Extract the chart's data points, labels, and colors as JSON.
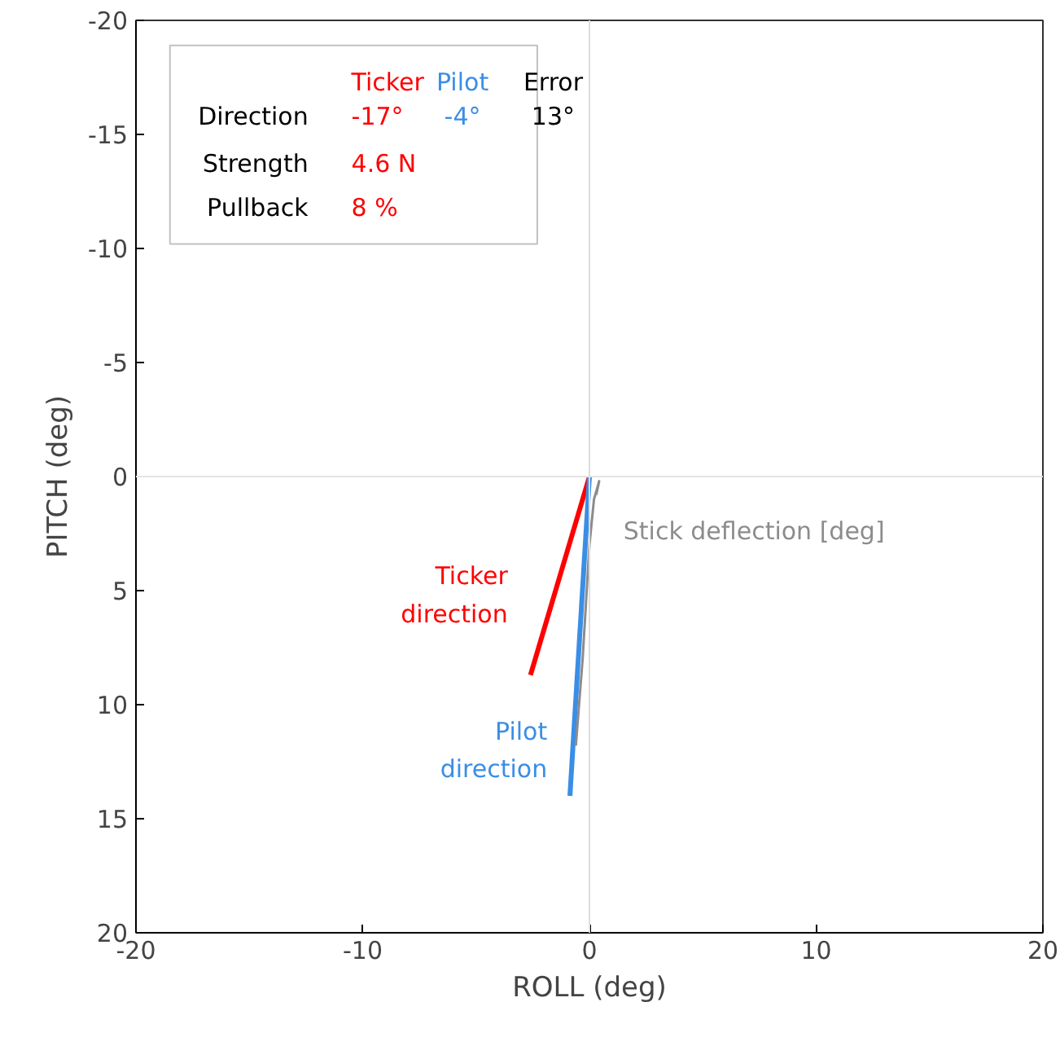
{
  "chart_data": {
    "type": "line",
    "xlabel": "ROLL (deg)",
    "ylabel": "PITCH (deg)",
    "xlim": [
      -20,
      20
    ],
    "ylim": [
      20,
      -20
    ],
    "xticks": [
      -20,
      -10,
      0,
      10,
      20
    ],
    "yticks": [
      -20,
      -15,
      -10,
      -5,
      0,
      5,
      10,
      15,
      20
    ],
    "grid": false,
    "marker": "none",
    "line_style": "solid",
    "series": [
      {
        "name": "Ticker direction",
        "color": "#ff0000",
        "x": [
          0,
          -2.6
        ],
        "values": [
          0,
          8.7
        ]
      },
      {
        "name": "Pilot direction",
        "color": "#3a8ee6",
        "x": [
          0,
          -0.86
        ],
        "values": [
          0,
          14.0
        ]
      },
      {
        "name": "Stick deflection [deg]",
        "color": "#8c8c8c",
        "x": [
          -0.6,
          -0.3,
          0,
          0.2,
          0.43,
          0.3
        ],
        "values": [
          11.8,
          8,
          3,
          1,
          0.2,
          0.8
        ]
      }
    ],
    "ref_lines": [
      {
        "axis": "x",
        "value": 0,
        "color": "#dddddd"
      },
      {
        "axis": "y",
        "value": 0,
        "color": "#e4e4e4"
      }
    ],
    "annotations": [
      "Ticker",
      "Pilot",
      "Error",
      "Direction",
      "-17°",
      "-4°",
      "13°",
      "Strength",
      "4.6 N",
      "Pullback",
      "8 %"
    ]
  }
}
